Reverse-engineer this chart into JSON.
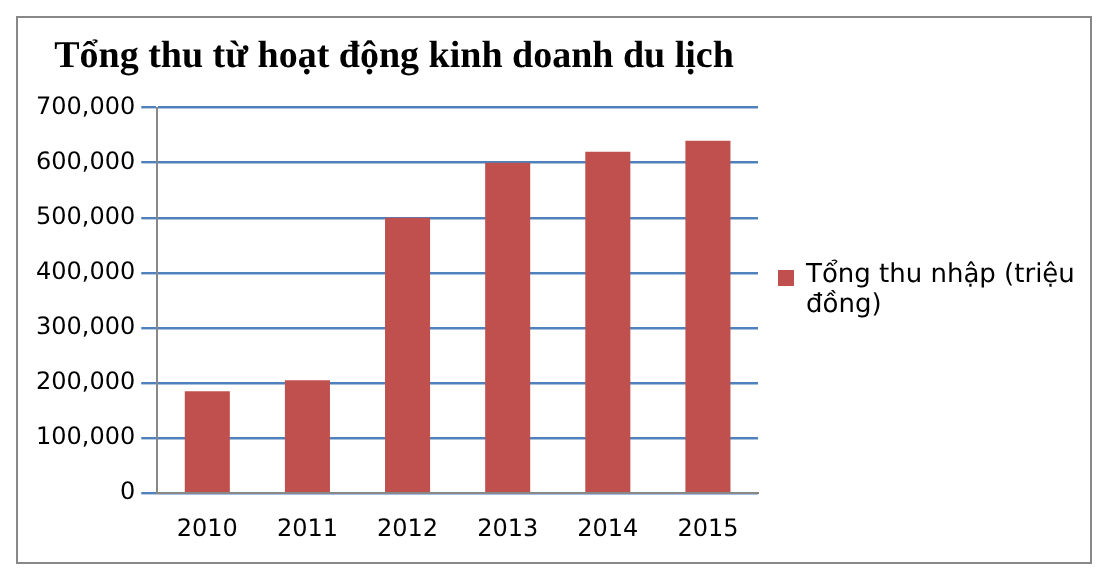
{
  "chart_data": {
    "type": "bar",
    "title": "Tổng thu từ hoạt động kinh doanh du lịch",
    "categories": [
      "2010",
      "2011",
      "2012",
      "2013",
      "2014",
      "2015"
    ],
    "series": [
      {
        "name": "Tổng thu nhập (triệu đồng)",
        "color": "#c0504d",
        "values": [
          185000,
          205000,
          500000,
          600000,
          620000,
          640000
        ]
      }
    ],
    "ylim": [
      0,
      700000
    ],
    "yticks": [
      0,
      {
        "value": 100000,
        "label": "100,000"
      },
      {
        "value": 200000,
        "label": "200,000"
      },
      {
        "value": 300000,
        "label": "300,000"
      },
      {
        "value": 400000,
        "label": "400,000"
      },
      {
        "value": 500000,
        "label": "500,000"
      },
      {
        "value": 600000,
        "label": "600,000"
      },
      {
        "value": 700000,
        "label": "700,000"
      }
    ],
    "grid": "y",
    "legend": "right"
  }
}
